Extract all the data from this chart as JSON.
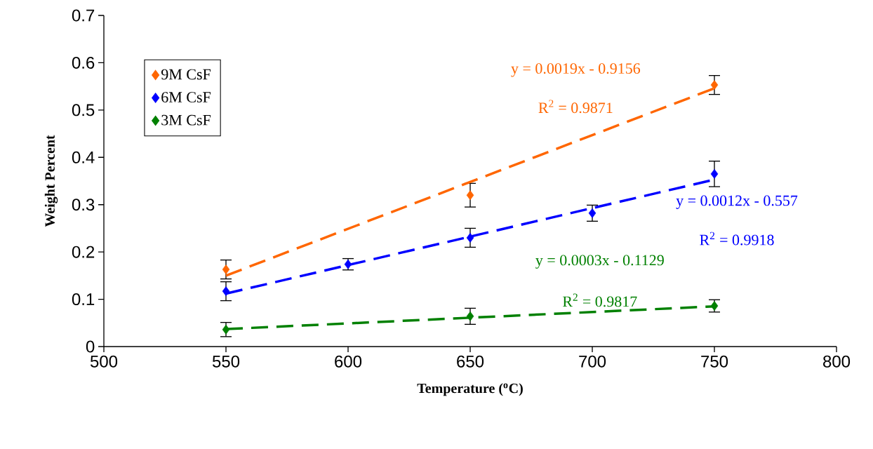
{
  "chart_data": {
    "type": "scatter",
    "xlabel": "Temperature ($^{o}$C)",
    "ylabel": "Weight Percent",
    "xlim": [
      500,
      800
    ],
    "xticks": [
      500,
      550,
      600,
      650,
      700,
      750,
      800
    ],
    "ylim": [
      0,
      0.7
    ],
    "yticks": [
      0,
      0.1,
      0.2,
      0.3,
      0.4,
      0.5,
      0.6,
      0.7
    ],
    "grid": false,
    "legend": "top left",
    "marker": "diamond",
    "series": [
      {
        "name": "9M CsF",
        "color": "#ff6600",
        "x": [
          550,
          650,
          750
        ],
        "values": [
          0.163,
          0.32,
          0.553
        ],
        "errors": [
          0.02,
          0.025,
          0.02
        ]
      },
      {
        "name": "6M CsF",
        "color": "#0000ff",
        "x": [
          550,
          600,
          650,
          700,
          750
        ],
        "values": [
          0.117,
          0.174,
          0.23,
          0.282,
          0.365
        ],
        "errors": [
          0.02,
          0.012,
          0.02,
          0.017,
          0.027
        ]
      },
      {
        "name": "3M CsF",
        "color": "#008000",
        "x": [
          550,
          650,
          750
        ],
        "values": [
          0.036,
          0.064,
          0.086
        ],
        "errors": [
          0.015,
          0.017,
          0.013
        ]
      },
      {
        "type": "line",
        "color": "#ff6600",
        "x": [
          550,
          750
        ],
        "values": [
          0.15,
          0.546
        ],
        "marker": "none",
        "line_style": "dashed"
      },
      {
        "type": "line",
        "color": "#0000ff",
        "x": [
          550,
          750
        ],
        "values": [
          0.112,
          0.353
        ],
        "marker": "none",
        "line_style": "dashed"
      },
      {
        "type": "line",
        "color": "#008000",
        "x": [
          550,
          750
        ],
        "values": [
          0.037,
          0.085
        ],
        "marker": "none",
        "line_style": "dashed"
      }
    ],
    "annotations": [
      "y = 0.0019x - 0.9156",
      "R$^{2}$ = 0.9871",
      "y = 0.0012x - 0.557",
      "R$^{2}$ = 0.9918",
      "y = 0.0003x - 0.1129",
      "R$^{2}$ = 0.9817"
    ]
  }
}
